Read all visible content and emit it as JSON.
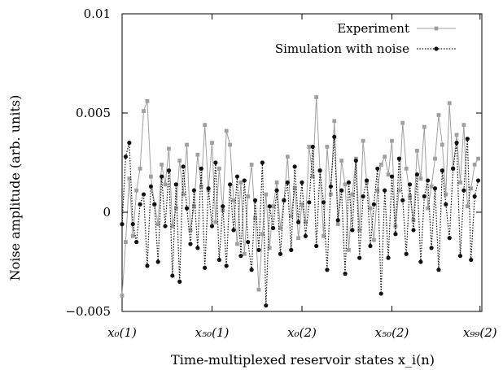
{
  "chart_data": {
    "type": "line",
    "title": "",
    "xlabel": "Time-multiplexed reservoir states x_i(n)",
    "ylabel": "Noise amplitude (arb. units)",
    "ylim": [
      -0.005,
      0.01
    ],
    "xlim": [
      0,
      200
    ],
    "yticks": [
      {
        "value": 0.01,
        "label": "0.01"
      },
      {
        "value": 0.005,
        "label": "0.005"
      },
      {
        "value": 0,
        "label": "0"
      },
      {
        "value": -0.005,
        "label": "−0.005"
      }
    ],
    "xticks": [
      {
        "value": 0,
        "label": "x₀(1)"
      },
      {
        "value": 50,
        "label": "x₅₀(1)"
      },
      {
        "value": 100,
        "label": "x₀(2)"
      },
      {
        "value": 150,
        "label": "x₅₀(2)"
      },
      {
        "value": 199,
        "label": "x₉₉(2)"
      }
    ],
    "grid": false,
    "legend_position": "top-right",
    "series": [
      {
        "name": "Experiment",
        "color": "#a0a0a0",
        "marker": "square",
        "line": "solid",
        "x": [
          0,
          2,
          4,
          6,
          8,
          10,
          12,
          14,
          16,
          18,
          20,
          22,
          24,
          26,
          28,
          30,
          32,
          34,
          36,
          38,
          40,
          42,
          44,
          46,
          48,
          50,
          52,
          54,
          56,
          58,
          60,
          62,
          64,
          66,
          68,
          70,
          72,
          74,
          76,
          78,
          80,
          82,
          84,
          86,
          88,
          90,
          92,
          94,
          96,
          98,
          100,
          102,
          104,
          106,
          108,
          110,
          112,
          114,
          116,
          118,
          120,
          122,
          124,
          126,
          128,
          130,
          132,
          134,
          136,
          138,
          140,
          142,
          144,
          146,
          148,
          150,
          152,
          154,
          156,
          158,
          160,
          162,
          164,
          166,
          168,
          170,
          172,
          174,
          176,
          178,
          180,
          182,
          184,
          186,
          188,
          190,
          192,
          194,
          196,
          198
        ],
        "values": [
          -0.0042,
          -0.0015,
          0.0017,
          -0.0012,
          0.0011,
          0.0022,
          0.0051,
          0.0056,
          0.0018,
          0.0004,
          -0.0006,
          0.0024,
          0.0014,
          0.0032,
          -0.0007,
          0.0002,
          0.0026,
          0.0009,
          0.0034,
          -0.0009,
          0.0003,
          0.0029,
          0.0013,
          0.0044,
          0.0011,
          0.0035,
          -0.0005,
          0.0022,
          0.0001,
          0.0041,
          0.0034,
          0.0006,
          -0.0016,
          0.0015,
          -0.0021,
          0.0008,
          0.0024,
          -0.0003,
          -0.0039,
          -0.0011,
          0.0009,
          -0.0018,
          0.0003,
          0.0015,
          -0.0008,
          0.0006,
          0.0028,
          -0.0002,
          0.0012,
          -0.0013,
          0.0004,
          -0.0005,
          0.0033,
          0.0018,
          0.0058,
          0.0021,
          -0.0012,
          0.0033,
          0.0009,
          0.0046,
          -0.0006,
          0.0026,
          0.0014,
          -0.0019,
          0.0009,
          0.0027,
          -0.0009,
          0.0036,
          0.0015,
          0.0002,
          -0.0014,
          0.0011,
          0.0024,
          0.0028,
          0.0019,
          0.0036,
          -0.0007,
          0.0011,
          0.0045,
          0.0022,
          0.0008,
          -0.0004,
          0.0031,
          0.0017,
          0.0043,
          0.0002,
          0.0013,
          0.0027,
          0.0049,
          0.0034,
          0.0009,
          0.0055,
          0.0022,
          0.0039,
          0.0015,
          0.0044,
          0.0003,
          0.0012,
          0.0024,
          0.0027
        ]
      },
      {
        "name": "Simulation with noise",
        "color": "#111111",
        "marker": "circle",
        "line": "dotted",
        "x": [
          0,
          2,
          4,
          6,
          8,
          10,
          12,
          14,
          16,
          18,
          20,
          22,
          24,
          26,
          28,
          30,
          32,
          34,
          36,
          38,
          40,
          42,
          44,
          46,
          48,
          50,
          52,
          54,
          56,
          58,
          60,
          62,
          64,
          66,
          68,
          70,
          72,
          74,
          76,
          78,
          80,
          82,
          84,
          86,
          88,
          90,
          92,
          94,
          96,
          98,
          100,
          102,
          104,
          106,
          108,
          110,
          112,
          114,
          116,
          118,
          120,
          122,
          124,
          126,
          128,
          130,
          132,
          134,
          136,
          138,
          140,
          142,
          144,
          146,
          148,
          150,
          152,
          154,
          156,
          158,
          160,
          162,
          164,
          166,
          168,
          170,
          172,
          174,
          176,
          178,
          180,
          182,
          184,
          186,
          188,
          190,
          192,
          194,
          196,
          198
        ],
        "values": [
          -0.0006,
          0.0028,
          0.0035,
          -0.0006,
          -0.0015,
          0.0004,
          0.0009,
          -0.0027,
          0.0013,
          0.0004,
          -0.0025,
          0.0018,
          -0.0007,
          0.0021,
          -0.0032,
          0.0014,
          -0.0035,
          0.0023,
          0.0002,
          -0.0016,
          0.0011,
          -0.0018,
          0.0022,
          -0.0028,
          0.0012,
          -0.0007,
          0.0025,
          -0.0024,
          0.0003,
          -0.0027,
          0.0014,
          -0.0009,
          0.0018,
          -0.0022,
          0.0016,
          -0.0015,
          -0.0029,
          0.0006,
          -0.0019,
          0.0025,
          -0.0047,
          0.0003,
          -0.0008,
          0.0011,
          -0.0021,
          0.0006,
          0.0015,
          -0.0019,
          0.0023,
          -0.0005,
          0.0015,
          -0.0012,
          0.0005,
          0.0033,
          -0.0017,
          0.0021,
          0.0005,
          -0.0029,
          0.0013,
          0.0038,
          -0.0004,
          0.0011,
          -0.0031,
          0.0015,
          -0.0009,
          0.0026,
          -0.0023,
          0.0008,
          0.0016,
          -0.0017,
          0.0004,
          0.0022,
          -0.0041,
          0.0011,
          -0.0023,
          0.0018,
          -0.0011,
          0.0027,
          0.0006,
          -0.0021,
          0.0014,
          -0.0009,
          0.0019,
          -0.0025,
          0.0008,
          0.0016,
          -0.0018,
          0.0012,
          -0.0029,
          0.0021,
          0.0004,
          -0.0013,
          0.0022,
          0.0035,
          -0.0022,
          0.0011,
          0.0037,
          -0.0024,
          0.0008,
          0.0016
        ]
      }
    ]
  }
}
